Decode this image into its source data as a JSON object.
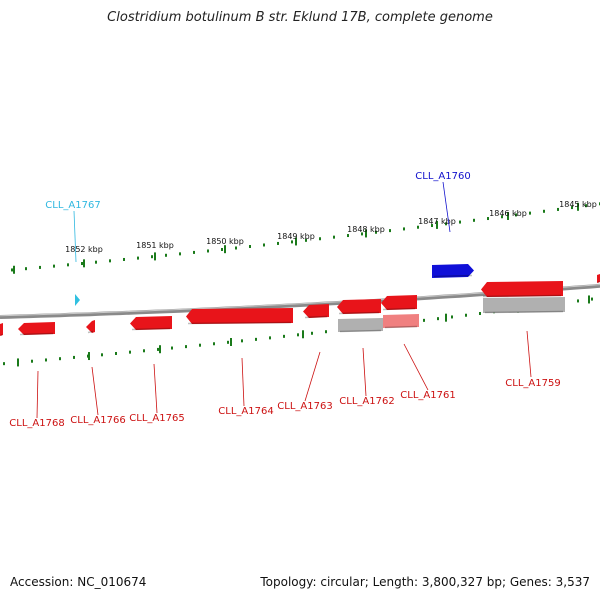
{
  "title": "Clostridium botulinum B str. Eklund 17B, complete genome",
  "footer": {
    "accession": "Accession: NC_010674",
    "stats": "Topology: circular; Length: 3,800,327 bp; Genes: 3,537"
  },
  "colors": {
    "backbone": "#8a8a8a",
    "tick": "#1a7a1a",
    "gene_red": "#e8141a",
    "gene_blue": "#1010d8",
    "gene_cyan": "#30c0e0",
    "gene_grey": "#b0b0b0",
    "gene_pink": "#f08080",
    "label_red": "#cc1111",
    "label_blue": "#1010cc",
    "label_cyan": "#30b8e0"
  },
  "scale_labels": [
    "1852 kbp",
    "1851 kbp",
    "1850 kbp",
    "1849 kbp",
    "1848 kbp",
    "1847 kbp",
    "1846 kbp",
    "1845 kbp"
  ],
  "gene_labels": [
    {
      "text": "CLL_A1767",
      "color": "cyan"
    },
    {
      "text": "CLL_A1760",
      "color": "blue"
    },
    {
      "text": "CLL_A1768",
      "color": "red"
    },
    {
      "text": "CLL_A1766",
      "color": "red"
    },
    {
      "text": "CLL_A1765",
      "color": "red"
    },
    {
      "text": "CLL_A1764",
      "color": "red"
    },
    {
      "text": "CLL_A1763",
      "color": "red"
    },
    {
      "text": "CLL_A1762",
      "color": "red"
    },
    {
      "text": "CLL_A1761",
      "color": "red"
    },
    {
      "text": "CLL_A1759",
      "color": "red"
    }
  ]
}
